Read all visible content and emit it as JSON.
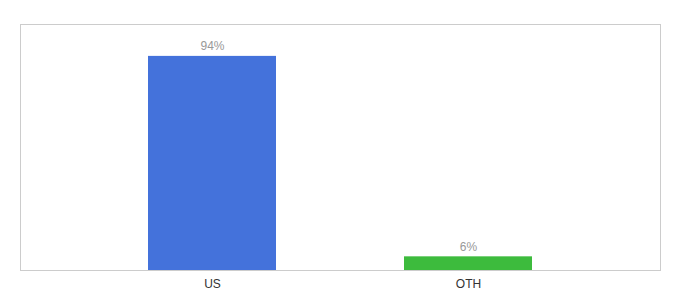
{
  "chart_data": {
    "type": "bar",
    "categories": [
      "US",
      "OTH"
    ],
    "values": [
      94,
      6
    ],
    "value_labels": [
      "94%",
      "6%"
    ],
    "colors": [
      "#4472db",
      "#3dbb3d"
    ],
    "ylim": [
      0,
      108
    ],
    "data_labels": true,
    "tick_labels": "x",
    "grid": false
  }
}
